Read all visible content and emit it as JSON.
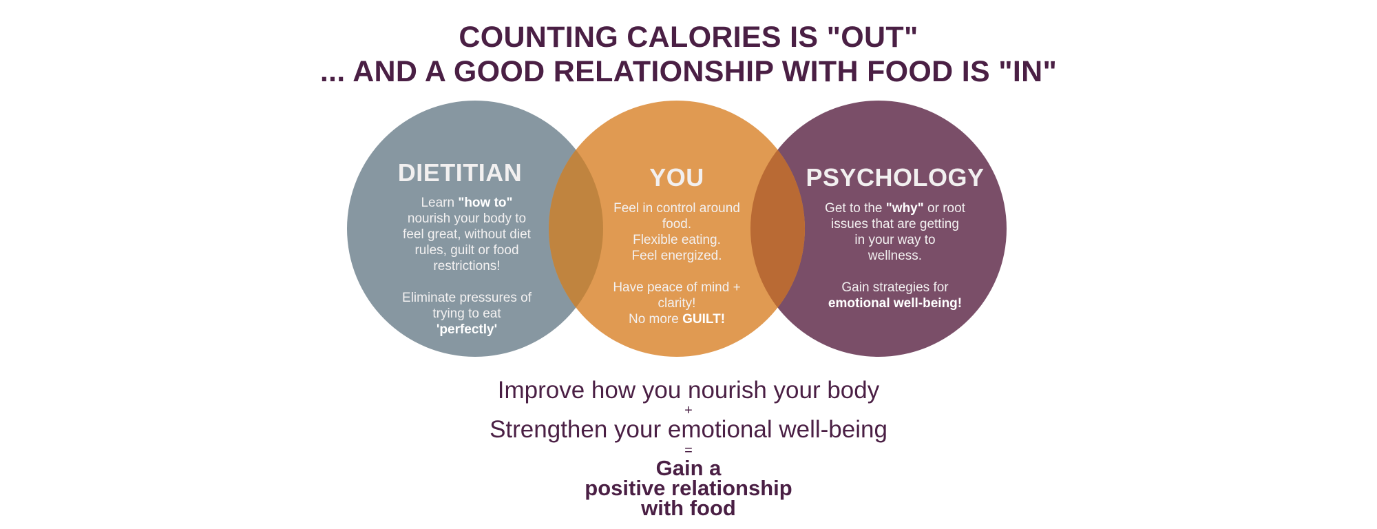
{
  "header": {
    "line1": "COUNTING CALORIES IS \"OUT\"",
    "line2": "... AND A GOOD RELATIONSHIP WITH FOOD IS \"IN\""
  },
  "circles": {
    "dietitian": {
      "title": "DIETITIAN",
      "color": "#8797a1",
      "learn_prefix": "Learn ",
      "learn_bold": "\"how to\"",
      "lines": [
        "nourish your body to",
        "feel great, without diet",
        "rules, guilt or food",
        "restrictions!"
      ],
      "elim_lines": [
        "Eliminate pressures of",
        "trying to eat"
      ],
      "elim_bold": "'perfectly'"
    },
    "you": {
      "title": "YOU",
      "color": "#e09a52",
      "lines": [
        "Feel in control around",
        "food.",
        "Flexible eating.",
        "Feel energized."
      ],
      "peace_lines": [
        "Have peace of mind +",
        "clarity!"
      ],
      "guilt_prefix": "No more ",
      "guilt_bold": "GUILT!"
    },
    "psychology": {
      "title": "PSYCHOLOGY",
      "color": "#7a4e68",
      "why_prefix": "Get to the ",
      "why_bold": "\"why\"",
      "why_suffix": " or root",
      "lines": [
        "issues that are getting",
        "in your way to",
        "wellness."
      ],
      "gain_line": "Gain strategies for",
      "gain_bold": "emotional well-being!"
    },
    "overlap_left_color": "#c0843f",
    "overlap_right_color": "#b96a34"
  },
  "equation": {
    "line1": "Improve how you nourish your body",
    "plus": "+",
    "line2": "Strengthen your emotional well-being",
    "equals": "=",
    "result": [
      "Gain a",
      "positive relationship",
      "with food"
    ]
  }
}
